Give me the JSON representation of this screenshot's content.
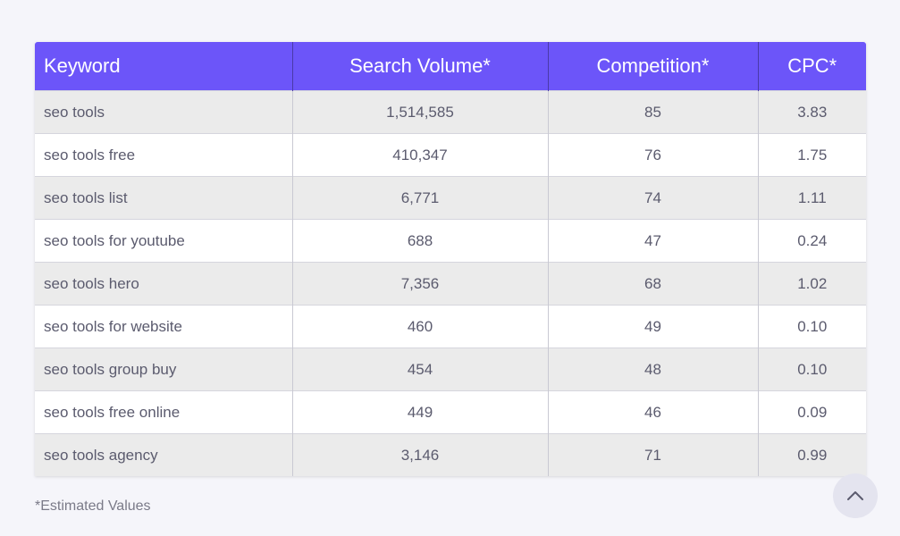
{
  "table": {
    "headers": [
      "Keyword",
      "Search Volume*",
      "Competition*",
      "CPC*"
    ],
    "rows": [
      [
        "seo tools",
        "1,514,585",
        "85",
        "3.83"
      ],
      [
        "seo tools free",
        "410,347",
        "76",
        "1.75"
      ],
      [
        "seo tools list",
        "6,771",
        "74",
        "1.11"
      ],
      [
        "seo tools for youtube",
        "688",
        "47",
        "0.24"
      ],
      [
        "seo tools hero",
        "7,356",
        "68",
        "1.02"
      ],
      [
        "seo tools for website",
        "460",
        "49",
        "0.10"
      ],
      [
        "seo tools group buy",
        "454",
        "48",
        "0.10"
      ],
      [
        "seo tools free online",
        "449",
        "46",
        "0.09"
      ],
      [
        "seo tools agency",
        "3,146",
        "71",
        "0.99"
      ]
    ]
  },
  "footnote": "*Estimated Values",
  "scroll_top": {
    "icon": "chevron-up-icon"
  },
  "colors": {
    "header_bg": "#6c55f9",
    "header_text": "#ffffff",
    "row_alt": "#ebebeb",
    "row": "#ffffff",
    "page_bg": "#f5f5fa"
  }
}
